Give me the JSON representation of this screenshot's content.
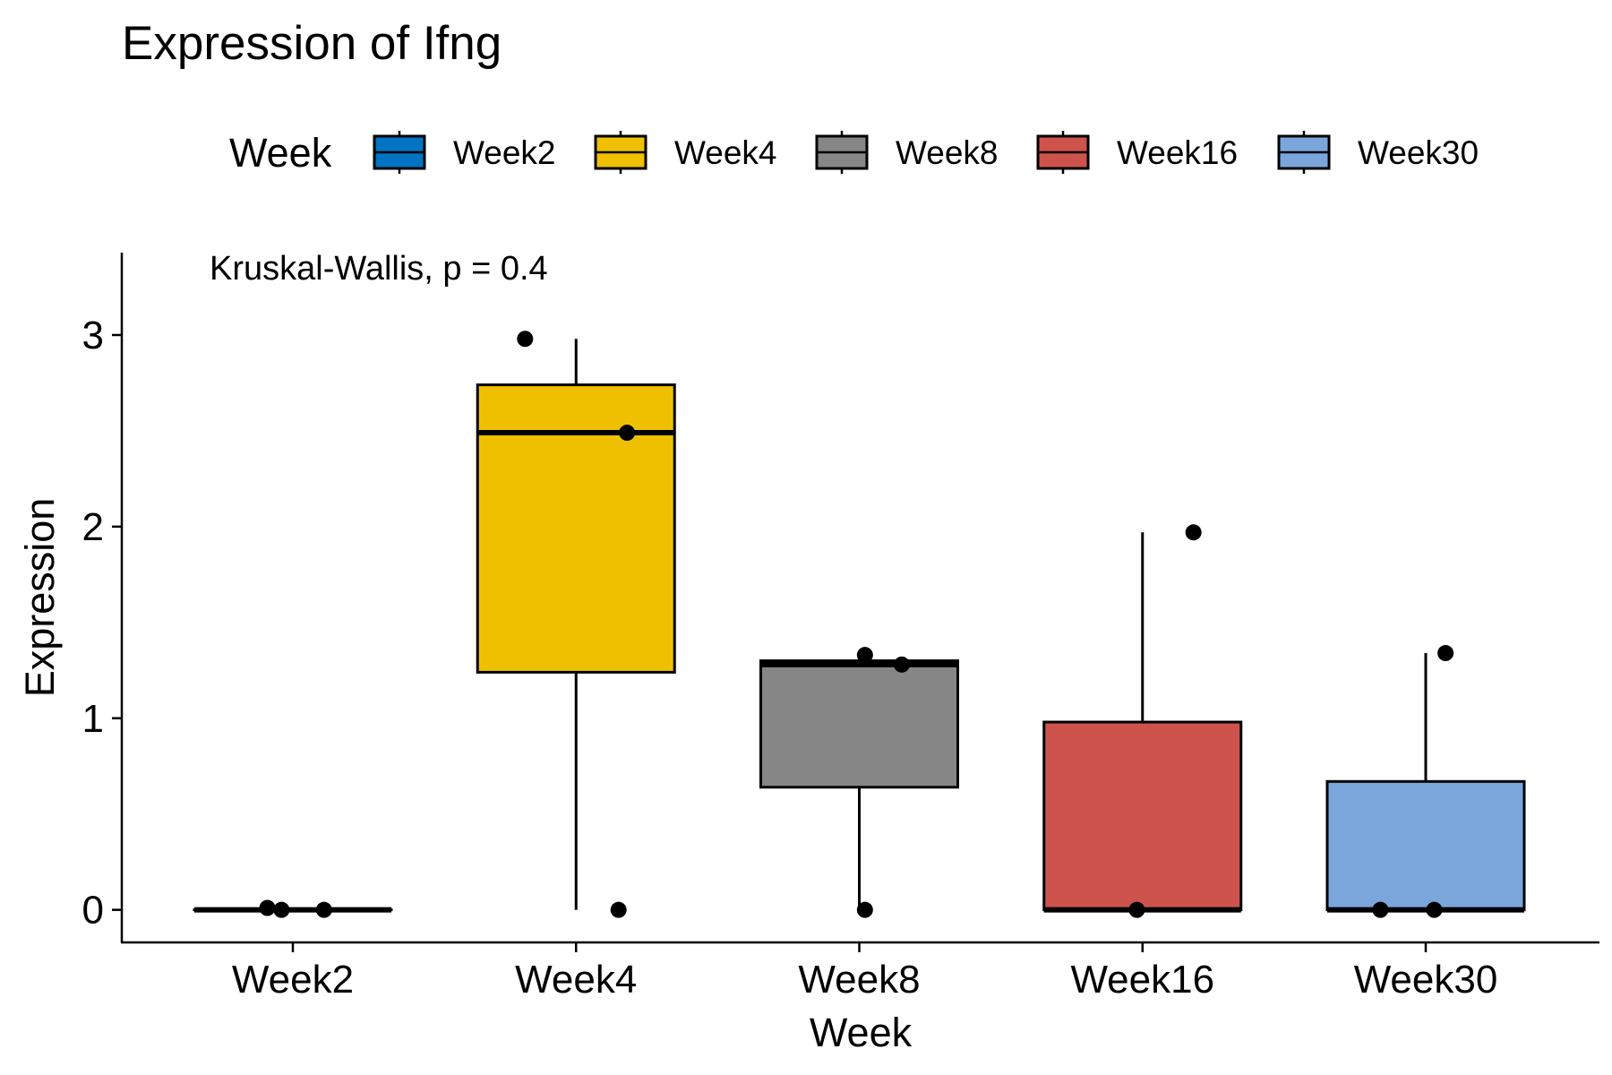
{
  "chart_data": {
    "type": "boxplot",
    "title": "Expression of Ifng",
    "xlabel": "Week",
    "ylabel": "Expression",
    "ylim": [
      -0.17,
      3.43
    ],
    "yticks": [
      0,
      1,
      2,
      3
    ],
    "grid": false,
    "legend": {
      "title": "Week",
      "position": "top"
    },
    "annotation": "Kruskal-Wallis, p = 0.4",
    "categories": [
      "Week2",
      "Week4",
      "Week8",
      "Week16",
      "Week30"
    ],
    "colors": [
      "#0073C2",
      "#EFC000",
      "#868686",
      "#CD534C",
      "#7AA6DC"
    ],
    "boxes": [
      {
        "name": "Week2",
        "min": 0.0,
        "q1": 0.0,
        "median": 0.0,
        "q3": 0.0,
        "max": 0.0
      },
      {
        "name": "Week4",
        "min": 0.0,
        "q1": 1.24,
        "median": 2.49,
        "q3": 2.74,
        "max": 2.98
      },
      {
        "name": "Week8",
        "min": 0.0,
        "q1": 0.64,
        "median": 1.28,
        "q3": 1.3,
        "max": 1.33
      },
      {
        "name": "Week16",
        "min": 0.0,
        "q1": 0.0,
        "median": 0.0,
        "q3": 0.98,
        "max": 1.97
      },
      {
        "name": "Week30",
        "min": 0.0,
        "q1": 0.0,
        "median": 0.0,
        "q3": 0.67,
        "max": 1.34
      }
    ],
    "points": [
      {
        "group": "Week2",
        "jitter": -0.09,
        "y": 0.01
      },
      {
        "group": "Week2",
        "jitter": -0.04,
        "y": 0.0
      },
      {
        "group": "Week2",
        "jitter": 0.11,
        "y": 0.0
      },
      {
        "group": "Week4",
        "jitter": -0.18,
        "y": 2.98
      },
      {
        "group": "Week4",
        "jitter": 0.18,
        "y": 2.49
      },
      {
        "group": "Week4",
        "jitter": 0.15,
        "y": 0.0
      },
      {
        "group": "Week8",
        "jitter": 0.02,
        "y": 1.33
      },
      {
        "group": "Week8",
        "jitter": 0.15,
        "y": 1.28
      },
      {
        "group": "Week8",
        "jitter": 0.02,
        "y": 0.0
      },
      {
        "group": "Week16",
        "jitter": 0.18,
        "y": 1.97
      },
      {
        "group": "Week16",
        "jitter": -0.02,
        "y": 0.0
      },
      {
        "group": "Week30",
        "jitter": 0.07,
        "y": 1.34
      },
      {
        "group": "Week30",
        "jitter": -0.16,
        "y": 0.0
      },
      {
        "group": "Week30",
        "jitter": 0.03,
        "y": 0.0
      }
    ]
  }
}
